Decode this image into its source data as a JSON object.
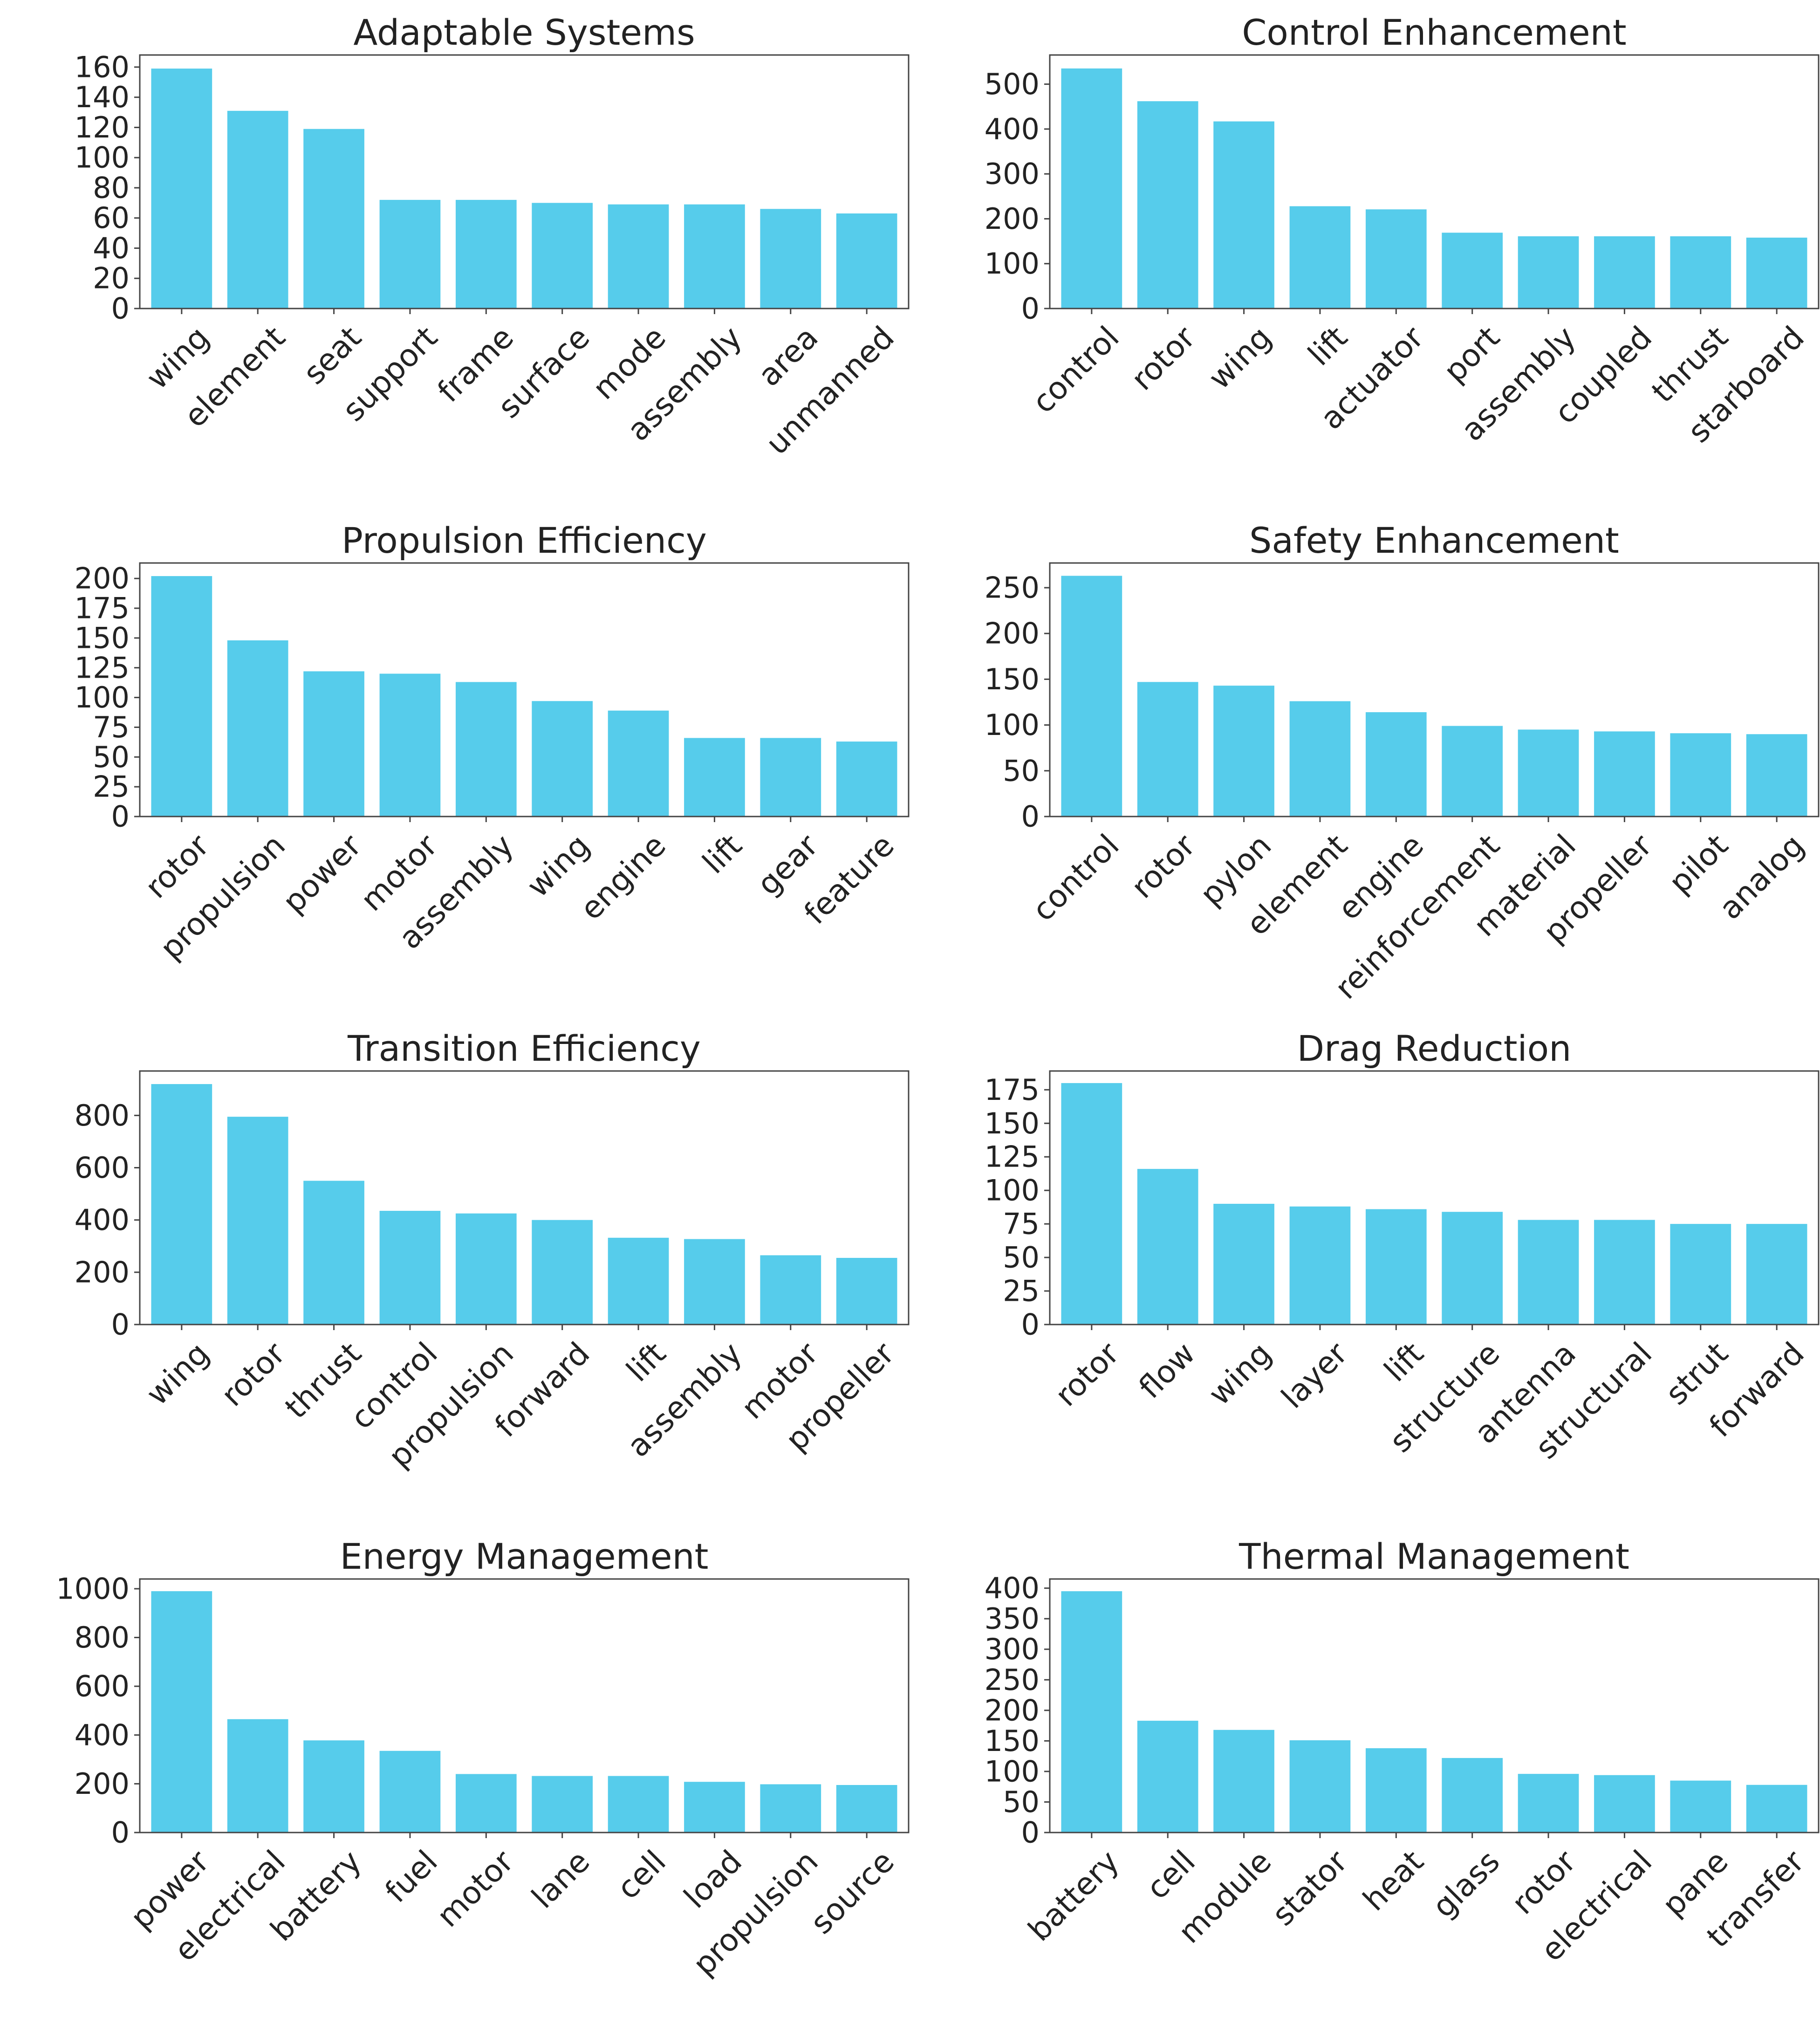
{
  "bar_color": "#56CCEB",
  "axis_color": "#444444",
  "chart_data": [
    {
      "type": "bar",
      "title": "Adaptable Systems",
      "categories": [
        "wing",
        "element",
        "seat",
        "support",
        "frame",
        "surface",
        "mode",
        "assembly",
        "area",
        "unmanned"
      ],
      "values": [
        159,
        131,
        119,
        72,
        72,
        70,
        69,
        69,
        66,
        63
      ],
      "ylim": [
        0,
        168
      ],
      "yticks": [
        0,
        20,
        40,
        60,
        80,
        100,
        120,
        140,
        160
      ],
      "xlabel": "",
      "ylabel": "",
      "grid": false,
      "legend": "none"
    },
    {
      "type": "bar",
      "title": "Control Enhancement",
      "categories": [
        "control",
        "rotor",
        "wing",
        "lift",
        "actuator",
        "port",
        "assembly",
        "coupled",
        "thrust",
        "starboard"
      ],
      "values": [
        535,
        462,
        417,
        228,
        221,
        169,
        161,
        161,
        161,
        158
      ],
      "ylim": [
        0,
        565
      ],
      "yticks": [
        0,
        100,
        200,
        300,
        400,
        500
      ],
      "xlabel": "",
      "ylabel": "",
      "grid": false,
      "legend": "none"
    },
    {
      "type": "bar",
      "title": "Propulsion Efficiency",
      "categories": [
        "rotor",
        "propulsion",
        "power",
        "motor",
        "assembly",
        "wing",
        "engine",
        "lift",
        "gear",
        "feature"
      ],
      "values": [
        202,
        148,
        122,
        120,
        113,
        97,
        89,
        66,
        66,
        63
      ],
      "ylim": [
        0,
        213
      ],
      "yticks": [
        0,
        25,
        50,
        75,
        100,
        125,
        150,
        175,
        200
      ],
      "xlabel": "",
      "ylabel": "",
      "grid": false,
      "legend": "none"
    },
    {
      "type": "bar",
      "title": "Safety Enhancement",
      "categories": [
        "control",
        "rotor",
        "pylon",
        "element",
        "engine",
        "reinforcement",
        "material",
        "propeller",
        "pilot",
        "analog"
      ],
      "values": [
        263,
        147,
        143,
        126,
        114,
        99,
        95,
        93,
        91,
        90
      ],
      "ylim": [
        0,
        277
      ],
      "yticks": [
        0,
        50,
        100,
        150,
        200,
        250
      ],
      "xlabel": "",
      "ylabel": "",
      "grid": false,
      "legend": "none"
    },
    {
      "type": "bar",
      "title": "Transition Efficiency",
      "categories": [
        "wing",
        "rotor",
        "thrust",
        "control",
        "propulsion",
        "forward",
        "lift",
        "assembly",
        "motor",
        "propeller"
      ],
      "values": [
        920,
        795,
        550,
        435,
        425,
        400,
        332,
        327,
        265,
        255
      ],
      "ylim": [
        0,
        970
      ],
      "yticks": [
        0,
        200,
        400,
        600,
        800
      ],
      "xlabel": "",
      "ylabel": "",
      "grid": false,
      "legend": "none"
    },
    {
      "type": "bar",
      "title": "Drag Reduction",
      "categories": [
        "rotor",
        "flow",
        "wing",
        "layer",
        "lift",
        "structure",
        "antenna",
        "structural",
        "strut",
        "forward"
      ],
      "values": [
        180,
        116,
        90,
        88,
        86,
        84,
        78,
        78,
        75,
        75
      ],
      "ylim": [
        0,
        189
      ],
      "yticks": [
        0,
        25,
        50,
        75,
        100,
        125,
        150,
        175
      ],
      "xlabel": "",
      "ylabel": "",
      "grid": false,
      "legend": "none"
    },
    {
      "type": "bar",
      "title": "Energy Management",
      "categories": [
        "power",
        "electrical",
        "battery",
        "fuel",
        "motor",
        "lane",
        "cell",
        "load",
        "propulsion",
        "source"
      ],
      "values": [
        990,
        465,
        378,
        335,
        240,
        232,
        232,
        208,
        198,
        195
      ],
      "ylim": [
        0,
        1040
      ],
      "yticks": [
        0,
        200,
        400,
        600,
        800,
        1000
      ],
      "xlabel": "",
      "ylabel": "",
      "grid": false,
      "legend": "none"
    },
    {
      "type": "bar",
      "title": "Thermal Management",
      "categories": [
        "battery",
        "cell",
        "module",
        "stator",
        "heat",
        "glass",
        "rotor",
        "electrical",
        "pane",
        "transfer"
      ],
      "values": [
        395,
        183,
        168,
        151,
        138,
        122,
        96,
        94,
        85,
        78
      ],
      "ylim": [
        0,
        415
      ],
      "yticks": [
        0,
        50,
        100,
        150,
        200,
        250,
        300,
        350,
        400
      ],
      "xlabel": "",
      "ylabel": "",
      "grid": false,
      "legend": "none"
    }
  ]
}
